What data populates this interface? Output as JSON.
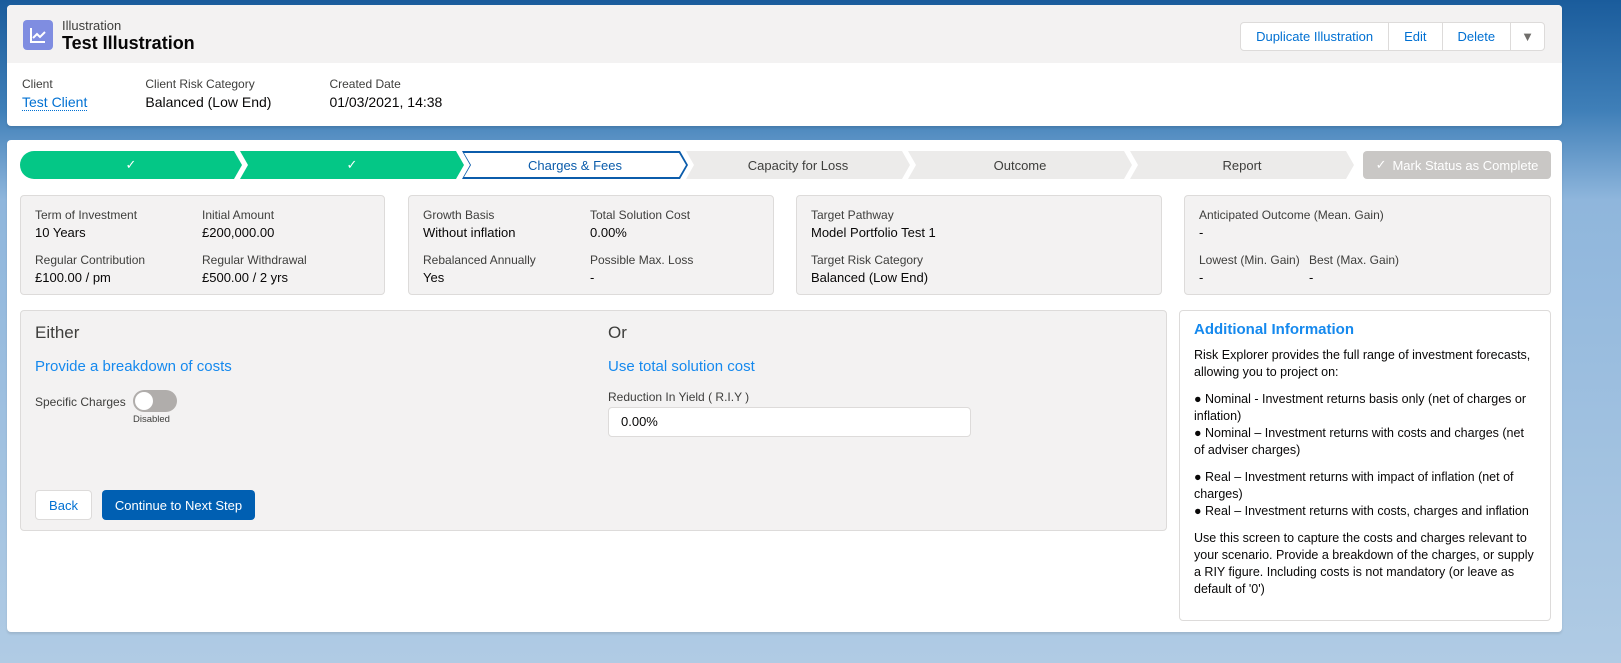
{
  "header": {
    "object_type": "Illustration",
    "title": "Test Illustration",
    "icon": "chart-line-icon",
    "actions": [
      "Duplicate Illustration",
      "Edit",
      "Delete"
    ],
    "fields": [
      {
        "label": "Client",
        "value": "Test Client"
      },
      {
        "label": "Client Risk Category",
        "value": "Balanced (Low End)"
      },
      {
        "label": "Created Date",
        "value": "01/03/2021, 14:38"
      }
    ]
  },
  "path": {
    "steps": [
      {
        "label": "",
        "state": "complete"
      },
      {
        "label": "",
        "state": "complete"
      },
      {
        "label": "Charges & Fees",
        "state": "current"
      },
      {
        "label": "Capacity for Loss",
        "state": "incomplete"
      },
      {
        "label": "Outcome",
        "state": "incomplete"
      },
      {
        "label": "Report",
        "state": "incomplete"
      }
    ],
    "mark_complete": "Mark Status as Complete"
  },
  "summary": [
    [
      {
        "label": "Term of Investment",
        "value": "10 Years"
      },
      {
        "label": "Initial Amount",
        "value": "£200,000.00"
      },
      {
        "label": "Regular Contribution",
        "value": "£100.00 / pm"
      },
      {
        "label": "Regular Withdrawal",
        "value": "£500.00 / 2 yrs"
      }
    ],
    [
      {
        "label": "Growth Basis",
        "value": "Without inflation"
      },
      {
        "label": "Total Solution Cost",
        "value": "0.00%"
      },
      {
        "label": "Rebalanced Annually",
        "value": "Yes"
      },
      {
        "label": "Possible Max. Loss",
        "value": "-"
      }
    ],
    [
      {
        "label": "Target Pathway",
        "value": "Model Portfolio Test 1"
      },
      {
        "label": "Target Risk Category",
        "value": "Balanced (Low End)"
      }
    ],
    [
      {
        "label": "Anticipated Outcome (Mean. Gain)",
        "value": "-"
      },
      {
        "label": "Lowest (Min. Gain)",
        "value": "-"
      },
      {
        "label": "Best (Max. Gain)",
        "value": "-"
      }
    ]
  ],
  "either": {
    "heading": "Either",
    "subheading": "Provide a breakdown of costs",
    "toggle_label": "Specific Charges",
    "toggle_state": "Disabled"
  },
  "or": {
    "heading": "Or",
    "subheading": "Use total solution cost",
    "field_label": "Reduction In Yield ( R.I.Y )",
    "field_value": "0.00%"
  },
  "buttons": {
    "back": "Back",
    "continue": "Continue to Next Step"
  },
  "info": {
    "title": "Additional Information",
    "intro": "Risk Explorer provides the full range of investment forecasts, allowing you to project on:",
    "group1": [
      "● Nominal - Investment returns basis only (net of charges or inflation)",
      "● Nominal – Investment returns with costs and charges (net of adviser charges)"
    ],
    "group2": [
      "● Real – Investment returns with impact of inflation (net of charges)",
      "● Real – Investment returns with costs, charges and inflation"
    ],
    "outro": "Use this screen to capture the costs and charges relevant to your scenario. Provide a breakdown of the charges, or supply a RIY figure. Including costs is not mandatory (or leave as default of '0')"
  },
  "colors": {
    "complete": "#04c786",
    "current": "#0b5cab",
    "brand_button": "#005fb2",
    "link": "#0070d2"
  }
}
